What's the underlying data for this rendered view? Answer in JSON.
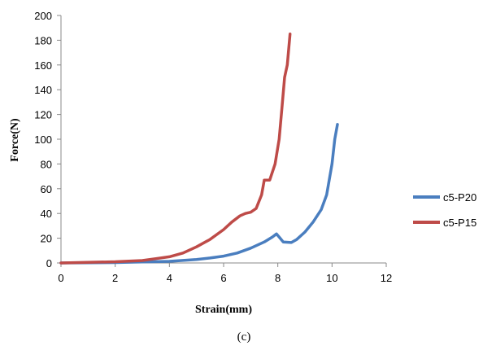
{
  "chart_data": {
    "type": "line",
    "xlabel": "Strain(mm)",
    "ylabel": "Force(N)",
    "caption": "(c)",
    "xlim": [
      0,
      12
    ],
    "ylim": [
      0,
      200
    ],
    "xticks": [
      "0",
      "2",
      "4",
      "6",
      "8",
      "10",
      "12"
    ],
    "yticks": [
      "0",
      "20",
      "40",
      "60",
      "80",
      "100",
      "120",
      "140",
      "160",
      "180",
      "200"
    ],
    "grid": false,
    "legend_position": "right",
    "series": [
      {
        "name": "c5-P20",
        "color": "#4a7ebf",
        "points": [
          [
            0,
            0
          ],
          [
            2,
            0.3
          ],
          [
            3,
            0.8
          ],
          [
            4,
            1.3
          ],
          [
            5,
            2.8
          ],
          [
            5.5,
            4
          ],
          [
            6,
            5.5
          ],
          [
            6.5,
            8
          ],
          [
            7,
            12
          ],
          [
            7.5,
            17
          ],
          [
            7.8,
            21
          ],
          [
            7.95,
            23.5
          ],
          [
            8.05,
            21
          ],
          [
            8.2,
            17
          ],
          [
            8.5,
            16.5
          ],
          [
            8.7,
            19
          ],
          [
            9,
            25
          ],
          [
            9.3,
            33
          ],
          [
            9.6,
            43
          ],
          [
            9.8,
            55
          ],
          [
            10,
            80
          ],
          [
            10.1,
            100
          ],
          [
            10.2,
            112
          ]
        ]
      },
      {
        "name": "c5-P15",
        "color": "#be4b48",
        "points": [
          [
            0,
            0
          ],
          [
            2,
            1
          ],
          [
            3,
            2
          ],
          [
            3.5,
            3.5
          ],
          [
            4,
            5
          ],
          [
            4.5,
            8
          ],
          [
            5,
            13
          ],
          [
            5.5,
            19
          ],
          [
            6,
            27
          ],
          [
            6.3,
            33
          ],
          [
            6.6,
            38
          ],
          [
            6.8,
            40
          ],
          [
            7,
            41
          ],
          [
            7.2,
            44
          ],
          [
            7.4,
            55
          ],
          [
            7.5,
            67
          ],
          [
            7.7,
            67
          ],
          [
            7.9,
            80
          ],
          [
            8.05,
            100
          ],
          [
            8.15,
            125
          ],
          [
            8.25,
            150
          ],
          [
            8.35,
            160
          ],
          [
            8.45,
            185
          ]
        ]
      }
    ]
  }
}
